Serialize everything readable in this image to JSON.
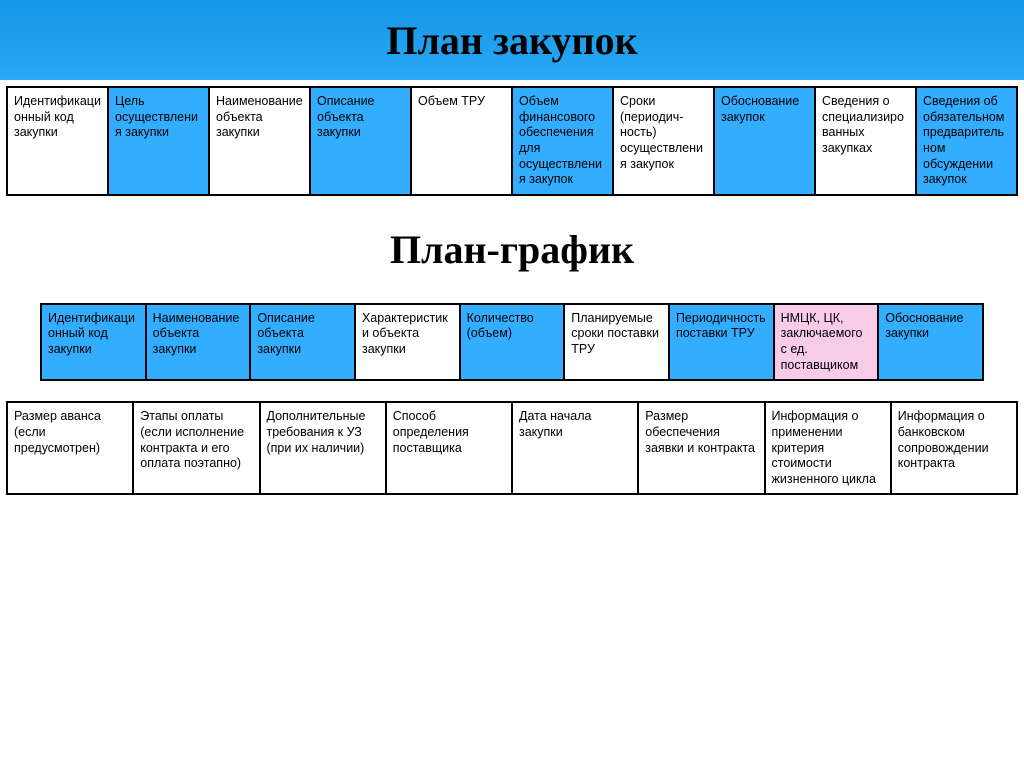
{
  "colors": {
    "band_gradient_top": "#1595e7",
    "band_gradient_bottom": "#2aa8f5",
    "cell_blue": "#33adff",
    "cell_white": "#ffffff",
    "cell_pink": "#f8cce8",
    "border": "#000000",
    "text": "#000000"
  },
  "typography": {
    "title_font": "Times New Roman",
    "title_size_pt": 30,
    "cell_font": "Arial",
    "cell_size_pt": 9
  },
  "title1": "План закупок",
  "table1": {
    "type": "table",
    "row": [
      {
        "text": "Идентификационный код закупки",
        "color": "white"
      },
      {
        "text": "Цель осуществления закупки",
        "color": "blue"
      },
      {
        "text": "Наименование объекта закупки",
        "color": "white"
      },
      {
        "text": "Описание объекта закупки",
        "color": "blue"
      },
      {
        "text": "Объем ТРУ",
        "color": "white"
      },
      {
        "text": "Объем финансового обеспечения для осуществления закупок",
        "color": "blue"
      },
      {
        "text": "Сроки (периодич-ность) осуществления закупок",
        "color": "white"
      },
      {
        "text": "Обоснование закупок",
        "color": "blue"
      },
      {
        "text": "Сведения о специализированных закупках",
        "color": "white"
      },
      {
        "text": "Сведения об обязательном предварительном обсуждении закупок",
        "color": "blue"
      }
    ]
  },
  "title2": "План-график",
  "table2": {
    "type": "table",
    "row": [
      {
        "text": "Идентификационный код закупки",
        "color": "blue"
      },
      {
        "text": "Наименование объекта закупки",
        "color": "blue"
      },
      {
        "text": "Описание объекта закупки",
        "color": "blue"
      },
      {
        "text": "Характеристики объекта закупки",
        "color": "white"
      },
      {
        "text": "Количество (объем)",
        "color": "blue"
      },
      {
        "text": "Планируемые сроки поставки ТРУ",
        "color": "white"
      },
      {
        "text": "Периодичность поставки ТРУ",
        "color": "blue"
      },
      {
        "text": "НМЦК, ЦК, заключаемого с ед. поставщиком",
        "color": "pink"
      },
      {
        "text": "Обоснование закупки",
        "color": "blue"
      }
    ]
  },
  "table3": {
    "type": "table",
    "row": [
      {
        "text": "Размер аванса (если предусмотрен)",
        "color": "white"
      },
      {
        "text": "Этапы оплаты (если исполнение контракта и его оплата поэтапно)",
        "color": "white"
      },
      {
        "text": "Дополнительные требования к УЗ (при их наличии)",
        "color": "white"
      },
      {
        "text": "Способ определения поставщика",
        "color": "white"
      },
      {
        "text": "Дата начала закупки",
        "color": "white"
      },
      {
        "text": "Размер обеспечения заявки и контракта",
        "color": "white"
      },
      {
        "text": "Информация о применении критерия стоимости жизненного цикла",
        "color": "white"
      },
      {
        "text": "Информация о банковском сопровождении контракта",
        "color": "white"
      }
    ]
  }
}
